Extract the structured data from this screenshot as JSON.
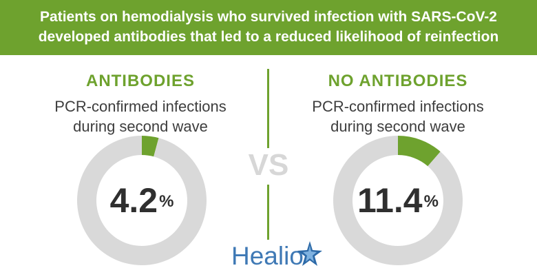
{
  "header": {
    "line1": "Patients on hemodialysis who survived infection with SARS-CoV-2",
    "line2": "developed antibodies that led to a reduced likelihood of reinfection"
  },
  "vs_label": "VS",
  "logo_text": "Healio",
  "colors": {
    "brand_green": "#6ea22e",
    "ring_gray": "#d9d9d9",
    "logo_blue": "#3f79b5"
  },
  "chart_data": [
    {
      "type": "pie",
      "title": "ANTIBODIES",
      "subtitle_line1": "PCR-confirmed infections",
      "subtitle_line2": "during second wave",
      "value_number": "4.2",
      "value_unit": "%",
      "values": [
        4.2,
        95.8
      ]
    },
    {
      "type": "pie",
      "title": "NO ANTIBODIES",
      "subtitle_line1": "PCR-confirmed infections",
      "subtitle_line2": "during second wave",
      "value_number": "11.4",
      "value_unit": "%",
      "values": [
        11.4,
        88.6
      ]
    }
  ]
}
